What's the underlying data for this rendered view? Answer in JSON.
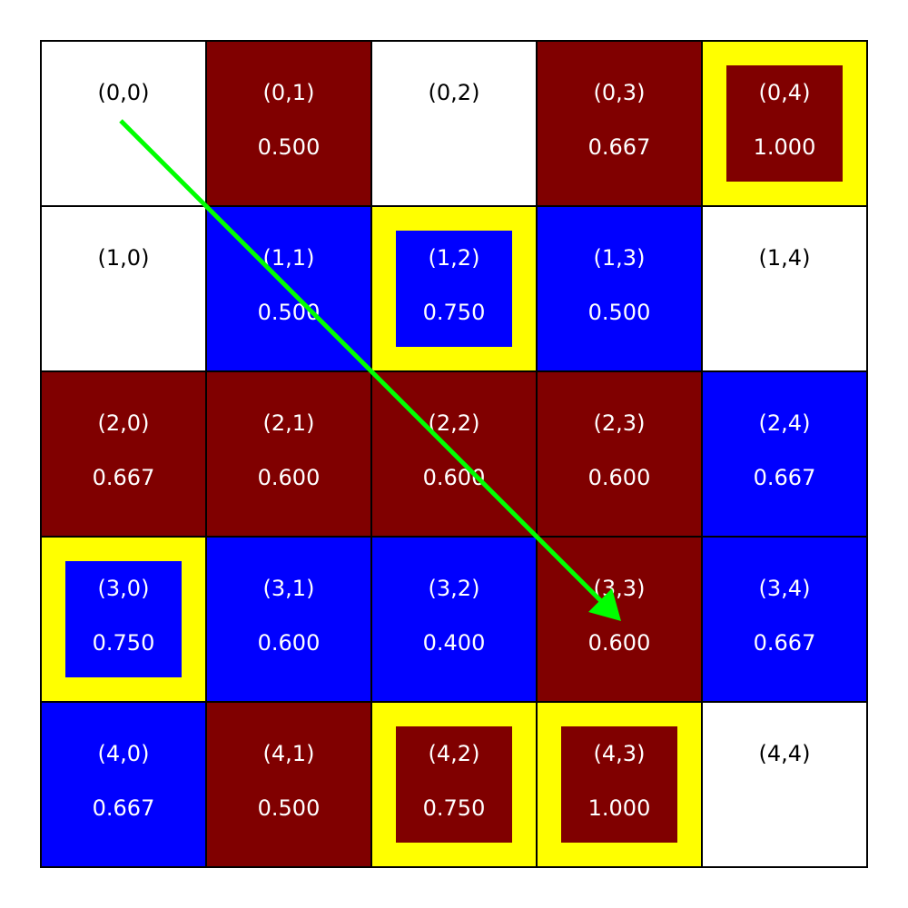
{
  "grid": {
    "highlight_color": "#ffff00",
    "border_color": "#000000",
    "arrow_color": "#00ff00",
    "rows": [
      [
        {
          "label": "(0,0)",
          "color": "#ffffff"
        },
        {
          "label": "(0,1)",
          "value": "0.500",
          "color": "#800000"
        },
        {
          "label": "(0,2)",
          "color": "#ffffff"
        },
        {
          "label": "(0,3)",
          "value": "0.667",
          "color": "#800000"
        },
        {
          "label": "(0,4)",
          "value": "1.000",
          "color": "#800000",
          "highlight": true
        }
      ],
      [
        {
          "label": "(1,0)",
          "color": "#ffffff"
        },
        {
          "label": "(1,1)",
          "value": "0.500",
          "color": "#0000ff"
        },
        {
          "label": "(1,2)",
          "value": "0.750",
          "color": "#0000ff",
          "highlight": true
        },
        {
          "label": "(1,3)",
          "value": "0.500",
          "color": "#0000ff"
        },
        {
          "label": "(1,4)",
          "color": "#ffffff"
        }
      ],
      [
        {
          "label": "(2,0)",
          "value": "0.667",
          "color": "#800000"
        },
        {
          "label": "(2,1)",
          "value": "0.600",
          "color": "#800000"
        },
        {
          "label": "(2,2)",
          "value": "0.600",
          "color": "#800000"
        },
        {
          "label": "(2,3)",
          "value": "0.600",
          "color": "#800000"
        },
        {
          "label": "(2,4)",
          "value": "0.667",
          "color": "#0000ff"
        }
      ],
      [
        {
          "label": "(3,0)",
          "value": "0.750",
          "color": "#0000ff",
          "highlight": true
        },
        {
          "label": "(3,1)",
          "value": "0.600",
          "color": "#0000ff"
        },
        {
          "label": "(3,2)",
          "value": "0.400",
          "color": "#0000ff"
        },
        {
          "label": "(3,3)",
          "value": "0.600",
          "color": "#800000"
        },
        {
          "label": "(3,4)",
          "value": "0.667",
          "color": "#0000ff"
        }
      ],
      [
        {
          "label": "(4,0)",
          "value": "0.667",
          "color": "#0000ff"
        },
        {
          "label": "(4,1)",
          "value": "0.500",
          "color": "#800000"
        },
        {
          "label": "(4,2)",
          "value": "0.750",
          "color": "#800000",
          "highlight": true
        },
        {
          "label": "(4,3)",
          "value": "1.000",
          "color": "#800000",
          "highlight": true
        },
        {
          "label": "(4,4)",
          "color": "#ffffff"
        }
      ]
    ]
  }
}
